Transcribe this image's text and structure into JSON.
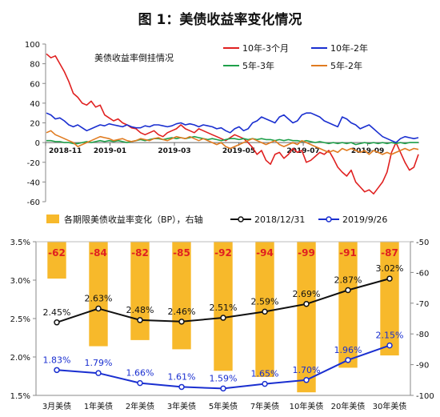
{
  "figure": {
    "title": "图 1：美债收益率变化情况"
  },
  "chart_data": [
    {
      "type": "line",
      "annotation": "美债收益率倒挂情况",
      "ylim": [
        -60,
        100
      ],
      "y_ticks": [
        100,
        80,
        60,
        40,
        20,
        0,
        -20,
        -40,
        -60
      ],
      "x_tick_labels": [
        "2018-11",
        "2019-01",
        "2019-03",
        "2019-05",
        "2019-07",
        "2019-09"
      ],
      "legend_position": "top-right",
      "grid": false,
      "series": [
        {
          "name": "10年-3个月",
          "color": "#e02020",
          "values": [
            90,
            86,
            88,
            80,
            72,
            62,
            50,
            46,
            40,
            38,
            42,
            36,
            38,
            28,
            25,
            22,
            24,
            20,
            18,
            15,
            14,
            10,
            8,
            10,
            12,
            8,
            6,
            10,
            12,
            14,
            18,
            14,
            12,
            10,
            14,
            12,
            10,
            8,
            6,
            4,
            2,
            5,
            8,
            6,
            4,
            0,
            -5,
            -12,
            -8,
            -18,
            -22,
            -12,
            -10,
            -16,
            -12,
            -6,
            -10,
            -8,
            -20,
            -18,
            -14,
            -10,
            -12,
            -8,
            -16,
            -25,
            -30,
            -34,
            -28,
            -40,
            -45,
            -50,
            -48,
            -52,
            -46,
            -40,
            -30,
            -10,
            0,
            -10,
            -20,
            -28,
            -25,
            -12
          ]
        },
        {
          "name": "10年-2年",
          "color": "#1a2fd0",
          "values": [
            30,
            28,
            24,
            25,
            22,
            18,
            16,
            18,
            15,
            12,
            14,
            16,
            18,
            17,
            19,
            18,
            17,
            16,
            18,
            16,
            15,
            15,
            17,
            16,
            18,
            18,
            17,
            16,
            17,
            19,
            20,
            18,
            19,
            18,
            16,
            18,
            17,
            16,
            14,
            15,
            12,
            10,
            14,
            16,
            12,
            14,
            20,
            22,
            26,
            24,
            22,
            20,
            26,
            28,
            24,
            20,
            22,
            28,
            30,
            30,
            28,
            26,
            22,
            20,
            18,
            16,
            26,
            24,
            20,
            18,
            14,
            16,
            18,
            14,
            10,
            6,
            4,
            2,
            0,
            4,
            6,
            5,
            4,
            5
          ]
        },
        {
          "name": "5年-3年",
          "color": "#1fa04a",
          "values": [
            2,
            2,
            1,
            1,
            0,
            0,
            -1,
            -1,
            0,
            1,
            0,
            1,
            2,
            1,
            2,
            1,
            2,
            1,
            0,
            1,
            2,
            3,
            2,
            3,
            4,
            4,
            3,
            4,
            5,
            4,
            5,
            4,
            5,
            6,
            5,
            4,
            3,
            4,
            3,
            2,
            3,
            4,
            4,
            3,
            4,
            3,
            4,
            3,
            4,
            3,
            3,
            2,
            3,
            2,
            3,
            2,
            2,
            1,
            2,
            1,
            0,
            1,
            0,
            -1,
            0,
            -1,
            0,
            -1,
            0,
            -2,
            -1,
            0,
            -1,
            0,
            -1,
            0,
            -1,
            0,
            -1,
            0,
            -1,
            0,
            0,
            0
          ]
        },
        {
          "name": "5年-2年",
          "color": "#e07b20",
          "values": [
            10,
            12,
            8,
            6,
            4,
            2,
            0,
            -4,
            -2,
            0,
            2,
            4,
            6,
            5,
            4,
            2,
            3,
            4,
            2,
            1,
            2,
            4,
            3,
            2,
            4,
            5,
            3,
            2,
            4,
            6,
            5,
            4,
            6,
            4,
            2,
            4,
            2,
            0,
            -2,
            0,
            -4,
            -6,
            -4,
            -2,
            0,
            2,
            4,
            2,
            0,
            -2,
            0,
            2,
            -2,
            -4,
            -2,
            0,
            -2,
            2,
            0,
            -2,
            -4,
            -6,
            -8,
            -10,
            -8,
            -10,
            -6,
            -8,
            -6,
            -8,
            -10,
            -8,
            -12,
            -8,
            -10,
            -12,
            -10,
            -12,
            -10,
            -8,
            -6,
            -8,
            -6,
            -7
          ]
        }
      ]
    },
    {
      "type": "bar",
      "categories": [
        "3月美债",
        "1年美债",
        "2年美债",
        "3年美债",
        "5年美债",
        "7年美债",
        "10年美债",
        "20年美债",
        "30年美债"
      ],
      "legend_position": "top",
      "grid": false,
      "bar_series": {
        "name": "各期限美债收益率变化（BP），右轴",
        "color": "#f7b92b",
        "label_color": "#e02020",
        "values": [
          -62,
          -84,
          -82,
          -85,
          -92,
          -94,
          -99,
          -91,
          -87
        ]
      },
      "line_series": [
        {
          "name": "2018/12/31",
          "color": "#111111",
          "label_color": "#111111",
          "values": [
            2.45,
            2.63,
            2.48,
            2.46,
            2.51,
            2.59,
            2.69,
            2.87,
            3.02
          ],
          "labels": [
            "2.45%",
            "2.63%",
            "2.48%",
            "2.46%",
            "2.51%",
            "2.59%",
            "2.69%",
            "2.87%",
            "3.02%"
          ]
        },
        {
          "name": "2019/9/26",
          "color": "#1a2fd0",
          "label_color": "#1a2fd0",
          "values": [
            1.83,
            1.79,
            1.66,
            1.61,
            1.59,
            1.65,
            1.7,
            1.96,
            2.15
          ],
          "labels": [
            "1.83%",
            "1.79%",
            "1.66%",
            "1.61%",
            "1.59%",
            "1.65%",
            "1.70%",
            "1.96%",
            "2.15%"
          ]
        }
      ],
      "left_axis": {
        "ylim": [
          1.5,
          3.5
        ],
        "tick_values": [
          3.5,
          3.0,
          2.5,
          2.0,
          1.5
        ],
        "tick_labels": [
          "3.5%",
          "3.0%",
          "2.5%",
          "2.0%",
          "1.5%"
        ]
      },
      "right_axis": {
        "ylim": [
          -100,
          -50
        ],
        "tick_values": [
          -50,
          -60,
          -70,
          -80,
          -90,
          -100
        ],
        "tick_labels": [
          "-50",
          "-60",
          "-70",
          "-80",
          "-90",
          "-100"
        ]
      }
    }
  ]
}
